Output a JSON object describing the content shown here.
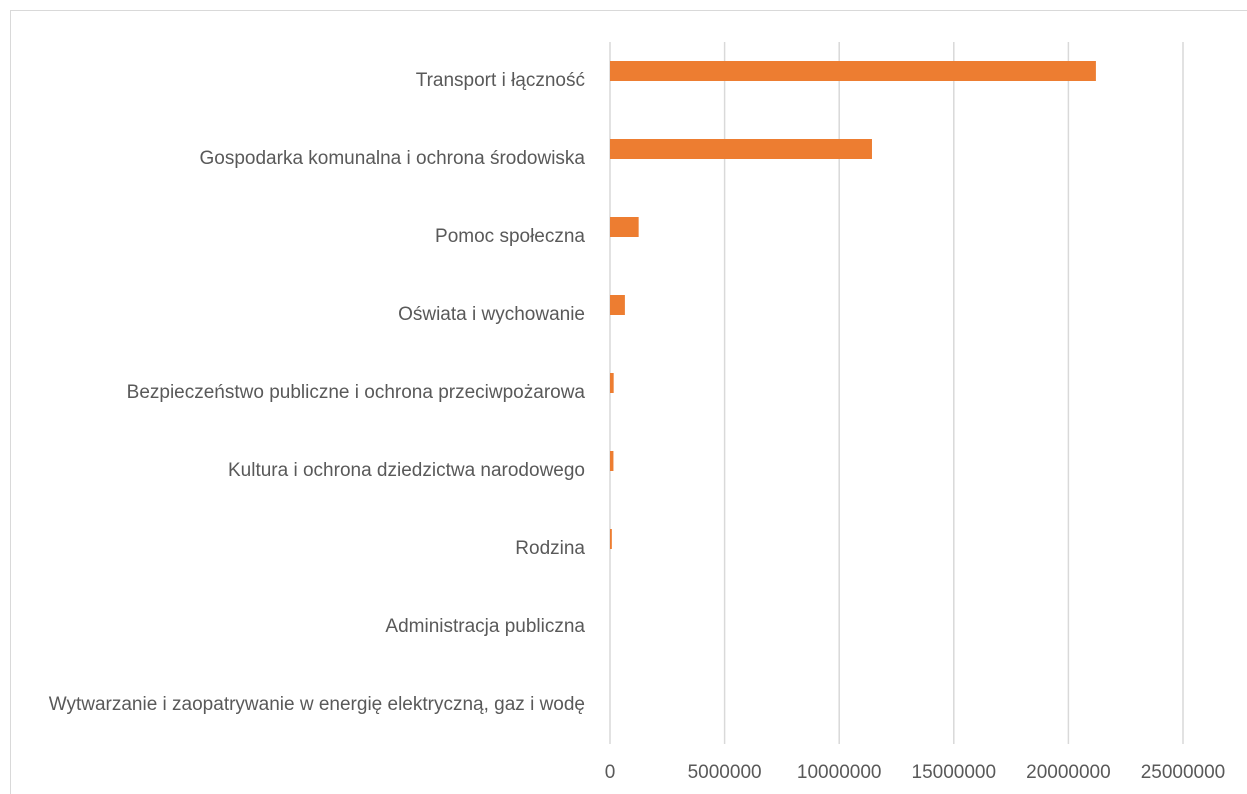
{
  "chart_data": {
    "type": "bar",
    "orientation": "horizontal",
    "categories": [
      "Transport i łączność",
      "Gospodarka komunalna i ochrona środowiska",
      "Pomoc społeczna",
      "Oświata i wychowanie",
      "Bezpieczeństwo publiczne i ochrona przeciwpożarowa",
      "Kultura i ochrona dziedzictwa narodowego",
      "Rodzina",
      "Administracja publiczna",
      "Wytwarzanie i zaopatrywanie w energię elektryczną, gaz i wodę"
    ],
    "values": [
      21200000,
      11430000,
      1250000,
      650000,
      160000,
      150000,
      80000,
      0,
      0
    ],
    "color": "#ed7d31",
    "xlim": [
      0,
      25000000
    ],
    "xticks": [
      0,
      5000000,
      10000000,
      15000000,
      20000000,
      25000000
    ],
    "grid": true
  }
}
